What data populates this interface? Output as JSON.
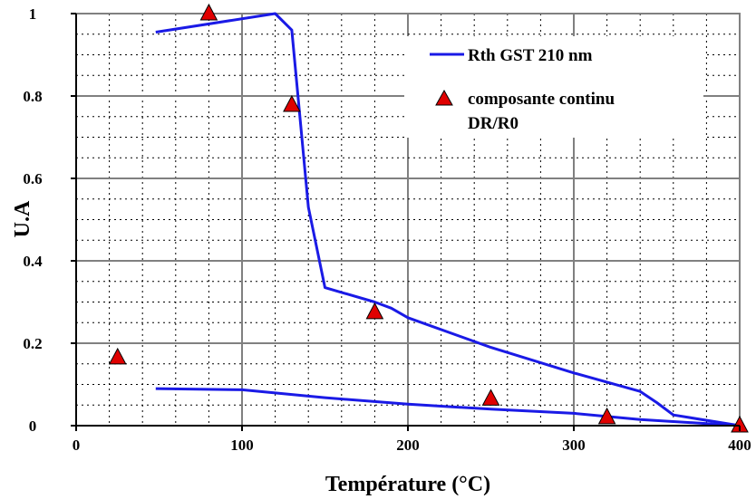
{
  "chart_data": {
    "type": "line",
    "xlabel": "Température (°C)",
    "ylabel": "U.A",
    "xlim": [
      0,
      400
    ],
    "ylim": [
      0,
      1
    ],
    "xticks": [
      "0",
      "100",
      "200",
      "300",
      "400"
    ],
    "yticks": [
      "0",
      "0.2",
      "0.4",
      "0.6",
      "0.8",
      "1"
    ],
    "grid": true,
    "legend_position": "top-right",
    "series": [
      {
        "name": "Rth GST 210 nm",
        "kind": "line",
        "color": "#1a1ae6",
        "segments": [
          [
            [
              48,
              0.955
            ],
            [
              120,
              1.0
            ],
            [
              130,
              0.96
            ],
            [
              140,
              0.53
            ],
            [
              150,
              0.335
            ],
            [
              180,
              0.3
            ],
            [
              190,
              0.285
            ],
            [
              200,
              0.262
            ],
            [
              250,
              0.19
            ],
            [
              300,
              0.128
            ],
            [
              340,
              0.083
            ],
            [
              350,
              0.056
            ],
            [
              360,
              0.026
            ],
            [
              400,
              0.0
            ]
          ],
          [
            [
              48,
              0.09
            ],
            [
              100,
              0.087
            ],
            [
              150,
              0.068
            ],
            [
              200,
              0.052
            ],
            [
              250,
              0.04
            ],
            [
              300,
              0.03
            ],
            [
              340,
              0.015
            ],
            [
              400,
              0.0
            ]
          ]
        ]
      },
      {
        "name": "composante continu DR/R0",
        "kind": "scatter",
        "marker": "triangle",
        "color": "#e00000",
        "points": [
          [
            25,
            0.165
          ],
          [
            80,
            1.0
          ],
          [
            130,
            0.778
          ],
          [
            180,
            0.275
          ],
          [
            250,
            0.065
          ],
          [
            320,
            0.02
          ],
          [
            400,
            0.0
          ]
        ]
      }
    ],
    "legend": {
      "line_label": "Rth GST 210 nm",
      "marker_label_line1": "composante continu",
      "marker_label_line2": "DR/R0"
    }
  }
}
